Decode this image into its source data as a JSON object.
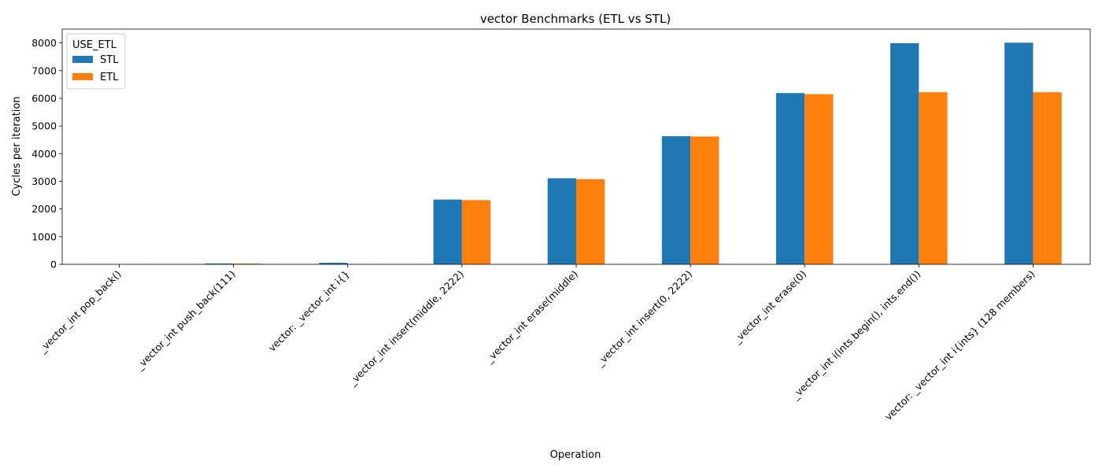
{
  "chart_data": {
    "type": "bar",
    "title": "vector Benchmarks (ETL vs STL)",
    "xlabel": "Operation",
    "ylabel": "Cycles per iteration",
    "ylim": [
      0,
      8500
    ],
    "yticks": [
      0,
      1000,
      2000,
      3000,
      4000,
      5000,
      6000,
      7000,
      8000
    ],
    "grid": false,
    "legend": {
      "title": "USE_ETL",
      "placement": "top-left"
    },
    "categories": [
      "_vector_int pop_back()",
      "_vector_int push_back(111)",
      "vector: _vector_int i{}",
      "_vector_int insert(middle, 2222)",
      "_vector_int erase(middle)",
      "_vector_int insert(0, 2222)",
      "_vector_int erase(0)",
      "_vector_int i(ints.begin(), ints.end())",
      "vector: _vector_int i{ints} (128 members)"
    ],
    "series": [
      {
        "name": "STL",
        "color": "#1f77b4",
        "values": [
          5,
          30,
          55,
          2340,
          3110,
          4630,
          6190,
          7990,
          8010
        ]
      },
      {
        "name": "ETL",
        "color": "#ff7f0e",
        "values": [
          3,
          25,
          5,
          2320,
          3080,
          4620,
          6150,
          6220,
          6220
        ]
      }
    ]
  }
}
